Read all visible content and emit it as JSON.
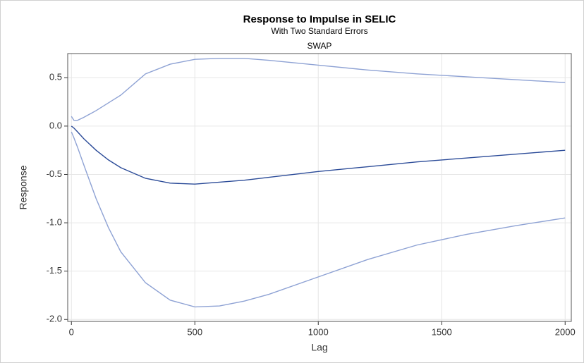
{
  "chart_data": {
    "type": "line",
    "title": "Response to Impulse in SELIC",
    "subtitle": "With Two Standard Errors",
    "panel_label": "SWAP",
    "x_label": "Lag",
    "y_label": "Response",
    "x": [
      0,
      10,
      25,
      50,
      100,
      150,
      200,
      300,
      400,
      500,
      600,
      700,
      800,
      1000,
      1200,
      1400,
      1600,
      1800,
      2000
    ],
    "series": [
      {
        "color": "#8ea2d4",
        "values": [
          0.1,
          0.06,
          0.06,
          0.09,
          0.16,
          0.24,
          0.32,
          0.54,
          0.64,
          0.69,
          0.7,
          0.7,
          0.68,
          0.63,
          0.58,
          0.54,
          0.51,
          0.48,
          0.45
        ]
      },
      {
        "color": "#2b4b98",
        "values": [
          0.0,
          -0.02,
          -0.06,
          -0.13,
          -0.25,
          -0.35,
          -0.43,
          -0.54,
          -0.59,
          -0.6,
          -0.58,
          -0.56,
          -0.53,
          -0.47,
          -0.42,
          -0.37,
          -0.33,
          -0.29,
          -0.25
        ]
      },
      {
        "color": "#8ea2d4",
        "values": [
          -0.06,
          -0.12,
          -0.22,
          -0.4,
          -0.75,
          -1.05,
          -1.3,
          -1.62,
          -1.8,
          -1.87,
          -1.86,
          -1.81,
          -1.74,
          -1.56,
          -1.38,
          -1.23,
          -1.12,
          -1.03,
          -0.95
        ]
      }
    ],
    "xlim": [
      -15,
      2025
    ],
    "xticks": [
      0,
      500,
      1000,
      1500,
      2000
    ],
    "ylim": [
      -2.02,
      0.75
    ],
    "yticks": [
      0.5,
      {
        "value": 0,
        "label": "0.0"
      },
      -0.5,
      {
        "value": -1,
        "label": "-1.0"
      },
      -1.5,
      {
        "value": -2,
        "label": "-2.0"
      }
    ],
    "grid": true
  }
}
